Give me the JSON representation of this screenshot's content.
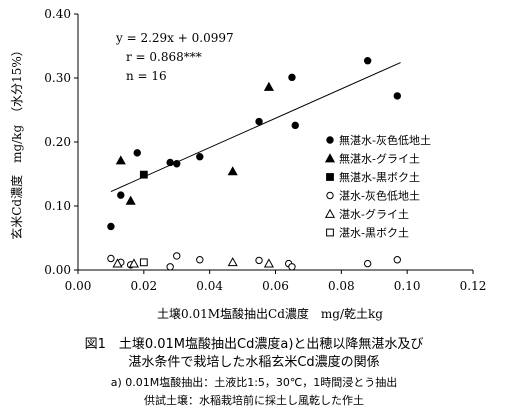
{
  "chart_data": {
    "type": "scatter",
    "xlabel": "土壌0.01M塩酸抽出Cd濃度　mg/乾土kg",
    "ylabel": "玄米Cd濃度　mg/kg　（水分15%）",
    "xlim": [
      0,
      0.12
    ],
    "ylim": [
      0,
      0.4
    ],
    "x_ticks": [
      "0.00",
      "0.02",
      "0.04",
      "0.06",
      "0.08",
      "0.10",
      "0.12"
    ],
    "y_ticks": [
      "0.00",
      "0.10",
      "0.20",
      "0.30",
      "0.40"
    ],
    "grid": false,
    "legend_position": "right",
    "annotations": [
      "y = 2.29x + 0.0997",
      "r = 0.868***",
      "n = 16"
    ],
    "regression": {
      "slope": 2.29,
      "intercept": 0.0997,
      "x_range": [
        0.01,
        0.098
      ]
    },
    "series": [
      {
        "name": "無湛水-灰色低地土",
        "marker": "circle-filled",
        "points": [
          [
            0.01,
            0.068
          ],
          [
            0.013,
            0.117
          ],
          [
            0.018,
            0.183
          ],
          [
            0.028,
            0.168
          ],
          [
            0.03,
            0.166
          ],
          [
            0.037,
            0.177
          ],
          [
            0.055,
            0.232
          ],
          [
            0.065,
            0.301
          ],
          [
            0.066,
            0.226
          ],
          [
            0.088,
            0.327
          ],
          [
            0.097,
            0.272
          ]
        ]
      },
      {
        "name": "無湛水-グライ土",
        "marker": "triangle-filled",
        "points": [
          [
            0.013,
            0.171
          ],
          [
            0.016,
            0.108
          ],
          [
            0.047,
            0.154
          ],
          [
            0.058,
            0.286
          ]
        ]
      },
      {
        "name": "無湛水-黒ボク土",
        "marker": "square-filled",
        "points": [
          [
            0.02,
            0.149
          ]
        ]
      },
      {
        "name": "湛水-灰色低地土",
        "marker": "circle-open",
        "points": [
          [
            0.01,
            0.018
          ],
          [
            0.013,
            0.012
          ],
          [
            0.016,
            0.008
          ],
          [
            0.028,
            0.005
          ],
          [
            0.03,
            0.022
          ],
          [
            0.037,
            0.016
          ],
          [
            0.055,
            0.015
          ],
          [
            0.064,
            0.01
          ],
          [
            0.065,
            0.005
          ],
          [
            0.088,
            0.01
          ],
          [
            0.097,
            0.016
          ]
        ]
      },
      {
        "name": "湛水-グライ土",
        "marker": "triangle-open",
        "points": [
          [
            0.012,
            0.01
          ],
          [
            0.017,
            0.01
          ],
          [
            0.047,
            0.012
          ],
          [
            0.058,
            0.01
          ]
        ]
      },
      {
        "name": "湛水-黒ボク土",
        "marker": "square-open",
        "points": [
          [
            0.02,
            0.012
          ]
        ]
      }
    ]
  },
  "caption": {
    "line1": "図1　土壌0.01M塩酸抽出Cd濃度a)と出穂以降無湛水及び",
    "line2": "湛水条件で栽培した水稲玄米Cd濃度の関係",
    "note1": "a) 0.01M塩酸抽出：土液比1:5，30℃，1時間浸とう抽出",
    "note2": "供試土壌：水稲栽培前に採土し風乾した作土"
  }
}
